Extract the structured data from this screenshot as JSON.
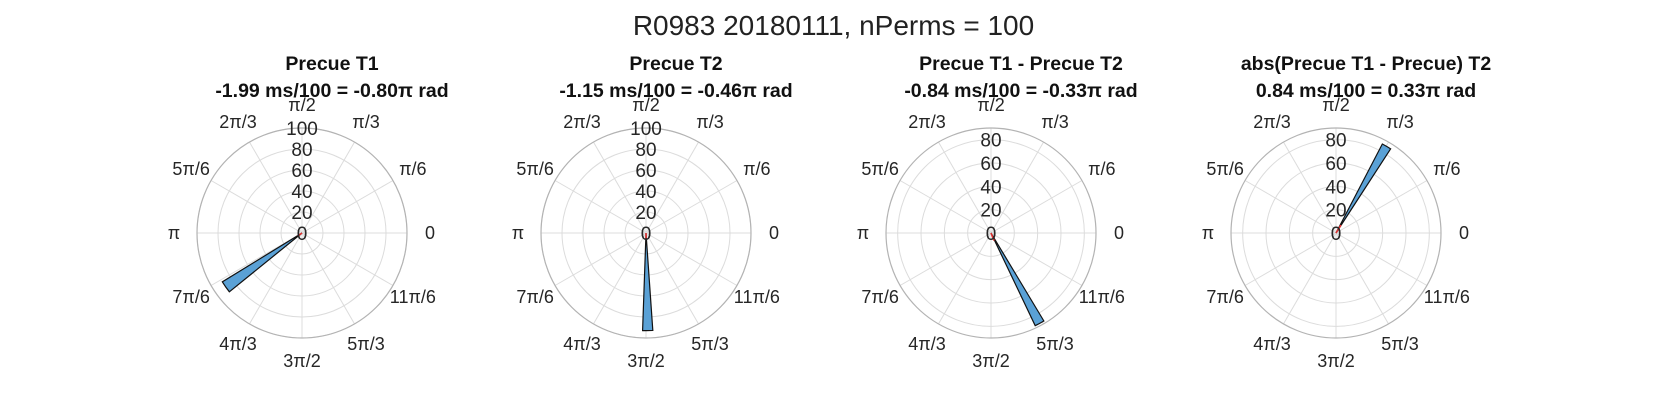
{
  "figure": {
    "title": "R0983 20180111, nPerms = 100"
  },
  "angle_labels": [
    "0",
    "π/6",
    "π/3",
    "π/2",
    "2π/3",
    "5π/6",
    "π",
    "7π/6",
    "4π/3",
    "3π/2",
    "5π/3",
    "11π/6"
  ],
  "chart_data": [
    {
      "type": "polar-histogram",
      "title": "Precue T1",
      "subtitle": "-1.99 ms/100 = -0.80π rad",
      "r_ticks": [
        "0",
        "20",
        "40",
        "60",
        "80",
        "100"
      ],
      "rmax": 100,
      "bins": [
        {
          "theta_start_deg": 211.5,
          "theta_end_deg": 219,
          "count": 89
        }
      ],
      "mean_vector": {
        "theta_deg": 216,
        "r": 5
      }
    },
    {
      "type": "polar-histogram",
      "title": "Precue T2",
      "subtitle": "-1.15 ms/100 = -0.46π rad",
      "r_ticks": [
        "0",
        "20",
        "40",
        "60",
        "80",
        "100"
      ],
      "rmax": 100,
      "bins": [
        {
          "theta_start_deg": 268,
          "theta_end_deg": 274,
          "count": 93
        }
      ],
      "mean_vector": {
        "theta_deg": 271,
        "r": 5
      }
    },
    {
      "type": "polar-histogram",
      "title": "Precue T1 - Precue T2",
      "subtitle": "-0.84 ms/100 = -0.33π rad",
      "r_ticks": [
        "0",
        "20",
        "40",
        "60",
        "80"
      ],
      "rmax": 90,
      "bins": [
        {
          "theta_start_deg": 295.5,
          "theta_end_deg": 301,
          "count": 88
        }
      ],
      "mean_vector": {
        "theta_deg": 292,
        "r": 7
      }
    },
    {
      "type": "polar-histogram",
      "title": "abs(Precue T1 - Precue) T2",
      "subtitle": "0.84 ms/100 = 0.33π rad",
      "r_ticks": [
        "0",
        "20",
        "40",
        "60",
        "80"
      ],
      "rmax": 90,
      "bins": [
        {
          "theta_start_deg": 57,
          "theta_end_deg": 62.5,
          "count": 86
        }
      ],
      "mean_vector": {
        "theta_deg": 58,
        "r": 8
      }
    }
  ],
  "colors": {
    "bar_fill": "#5aa1d6",
    "bar_edge": "#111111",
    "grid": "#dcdcdc",
    "outer": "#b3b3b3",
    "mean": "#e03030"
  }
}
